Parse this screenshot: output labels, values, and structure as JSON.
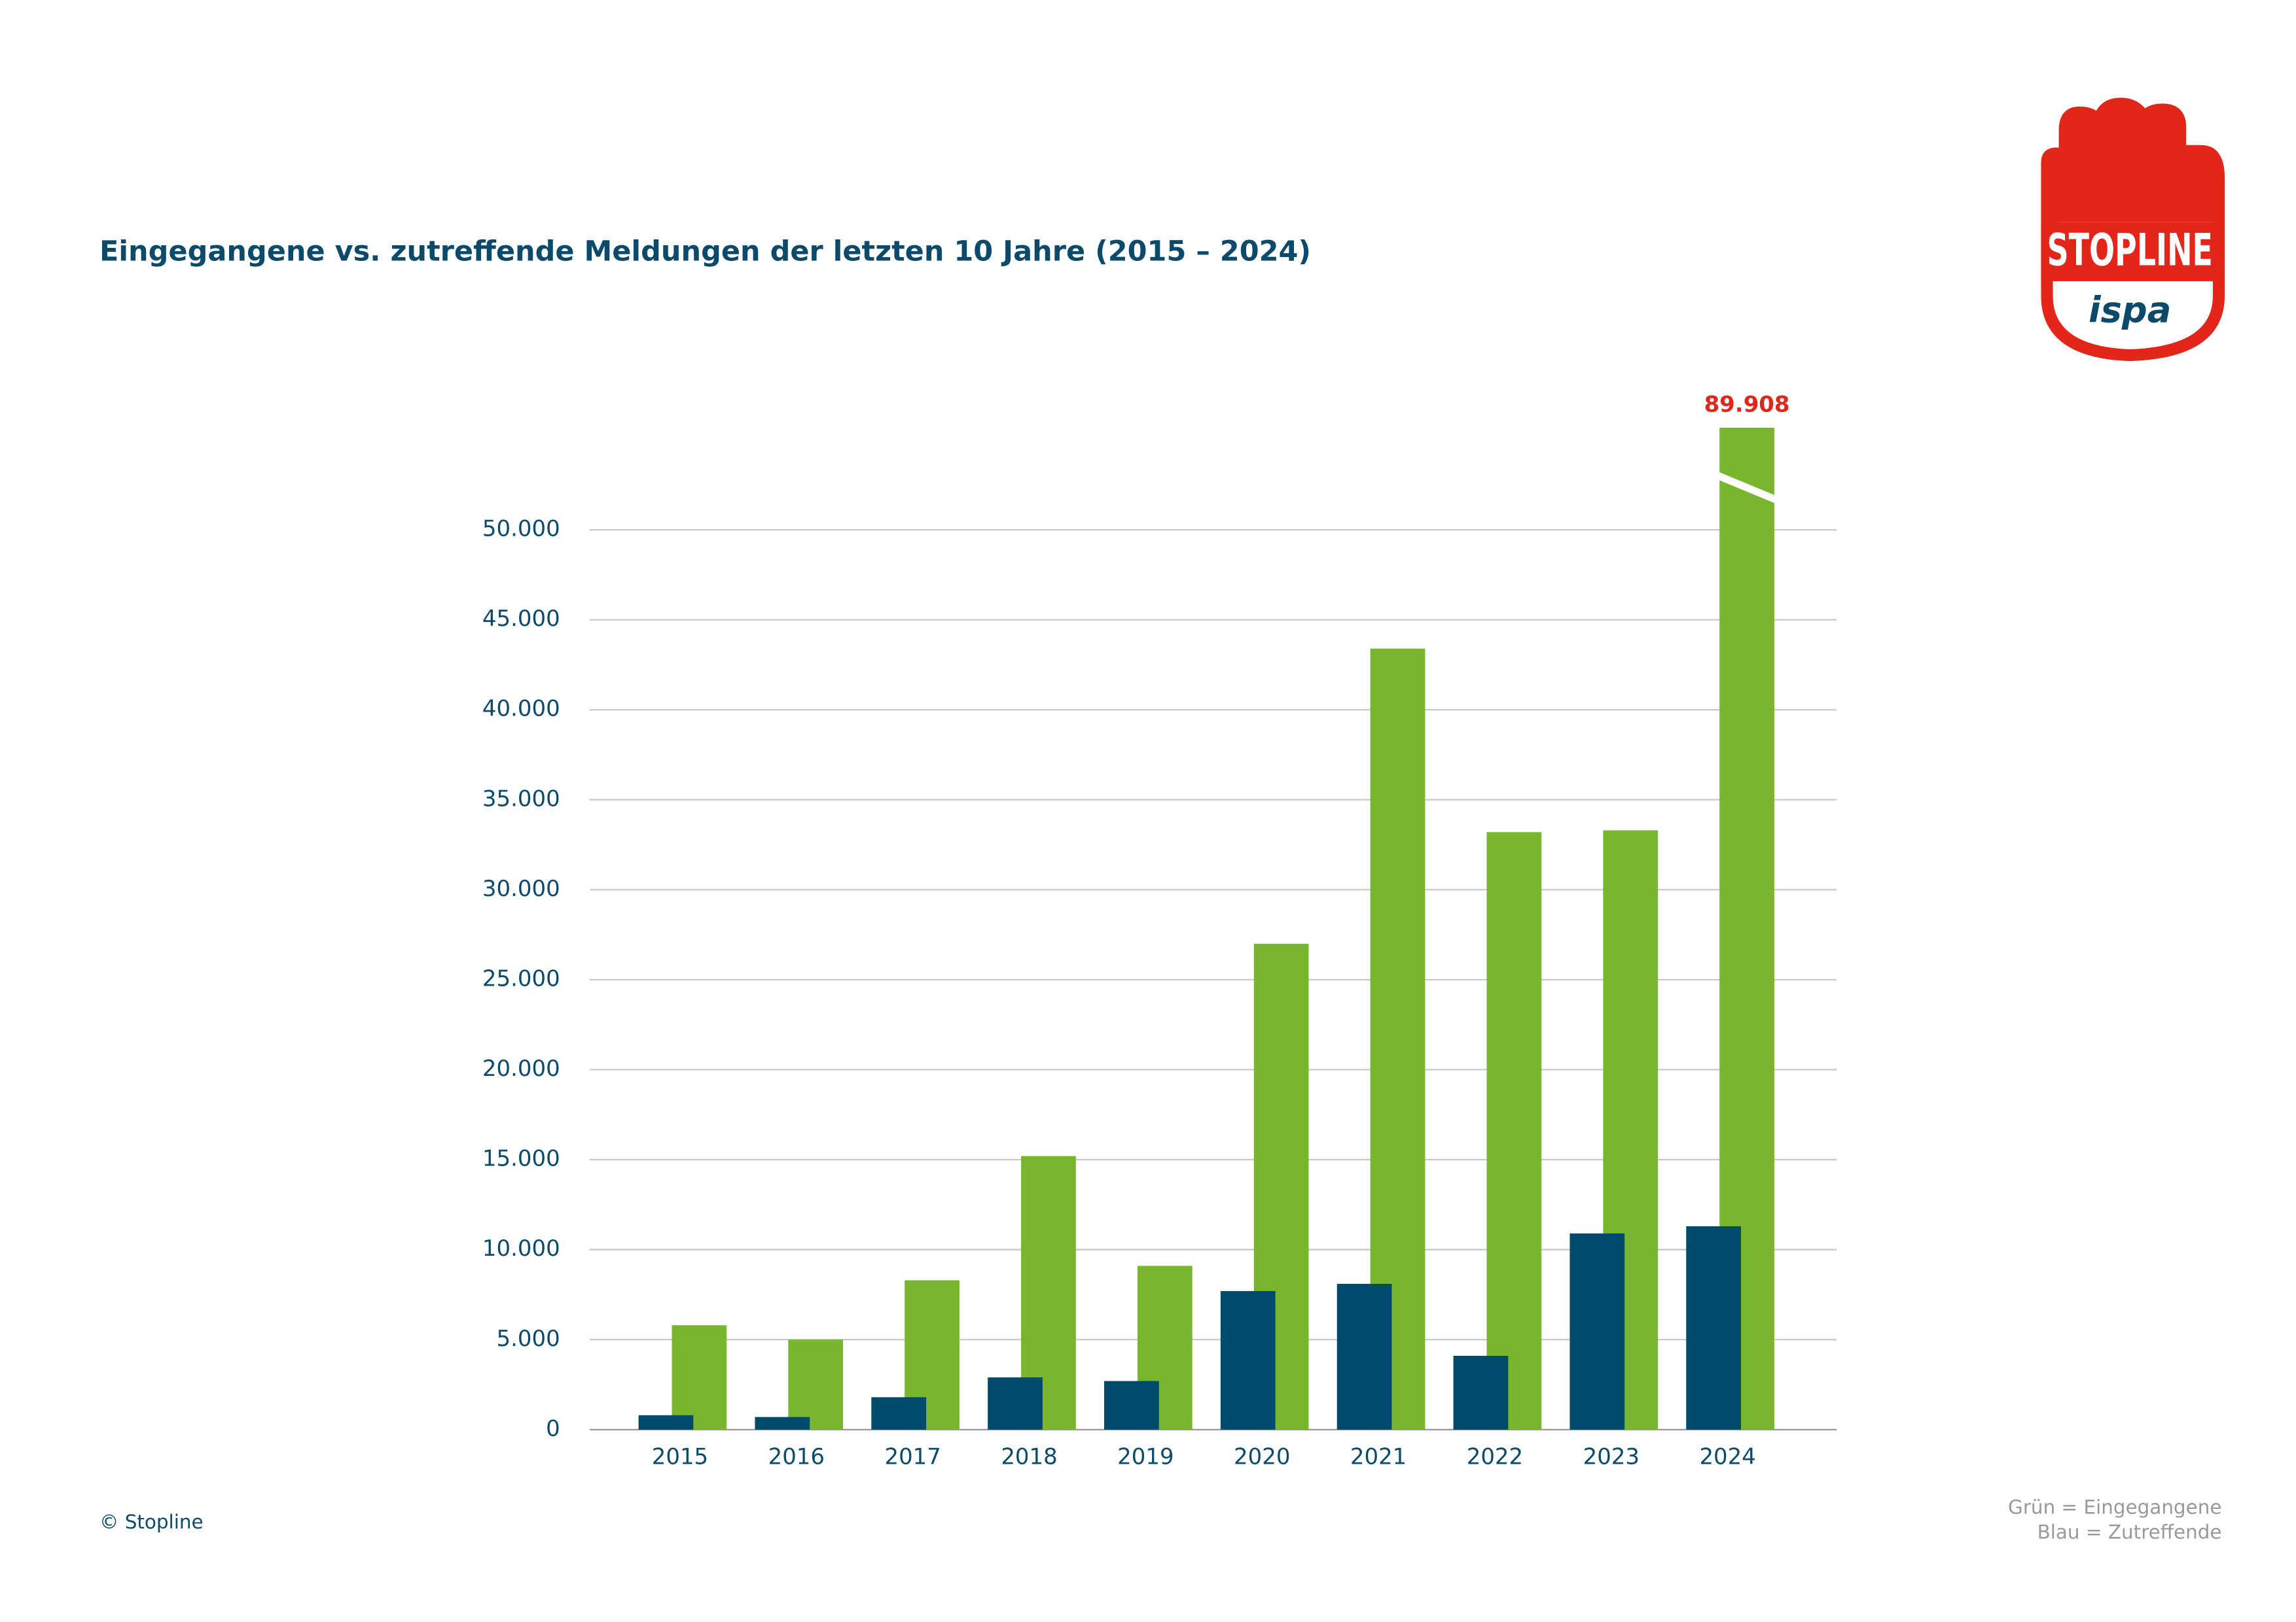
{
  "chart_data": {
    "type": "bar",
    "title": "Eingegangene vs. zutreffende Meldungen der letzten 10 Jahre (2015 – 2024)",
    "categories": [
      "2015",
      "2016",
      "2017",
      "2018",
      "2019",
      "2020",
      "2021",
      "2022",
      "2023",
      "2024"
    ],
    "series": [
      {
        "color": "#78b72d",
        "values": [
          5800,
          5000,
          8300,
          15200,
          9100,
          27000,
          43400,
          33200,
          33300,
          89908
        ],
        "value_labels": [
          null,
          null,
          null,
          null,
          null,
          null,
          null,
          null,
          null,
          "89.908"
        ]
      },
      {
        "color": "#004a6b",
        "values": [
          800,
          700,
          1800,
          2900,
          2700,
          7700,
          8100,
          4100,
          10900,
          11300
        ]
      }
    ],
    "ylim": [
      0,
      50000
    ],
    "yticks": [
      0,
      {
        "value": 5000,
        "label": "5.000"
      },
      {
        "value": 10000,
        "label": "10.000"
      },
      {
        "value": 15000,
        "label": "15.000"
      },
      {
        "value": 20000,
        "label": "20.000"
      },
      {
        "value": 25000,
        "label": "25.000"
      },
      {
        "value": 30000,
        "label": "30.000"
      },
      {
        "value": 35000,
        "label": "35.000"
      },
      {
        "value": 40000,
        "label": "40.000"
      },
      {
        "value": 45000,
        "label": "45.000"
      },
      {
        "value": 50000,
        "label": "50.000"
      }
    ],
    "grid": true,
    "legend_text": [
      "Grün = Eingegangene",
      "Blau = Zutreffende"
    ],
    "source": "© Stopline",
    "logo": {
      "text": "STOPLINE",
      "subtext": "ispa"
    }
  }
}
